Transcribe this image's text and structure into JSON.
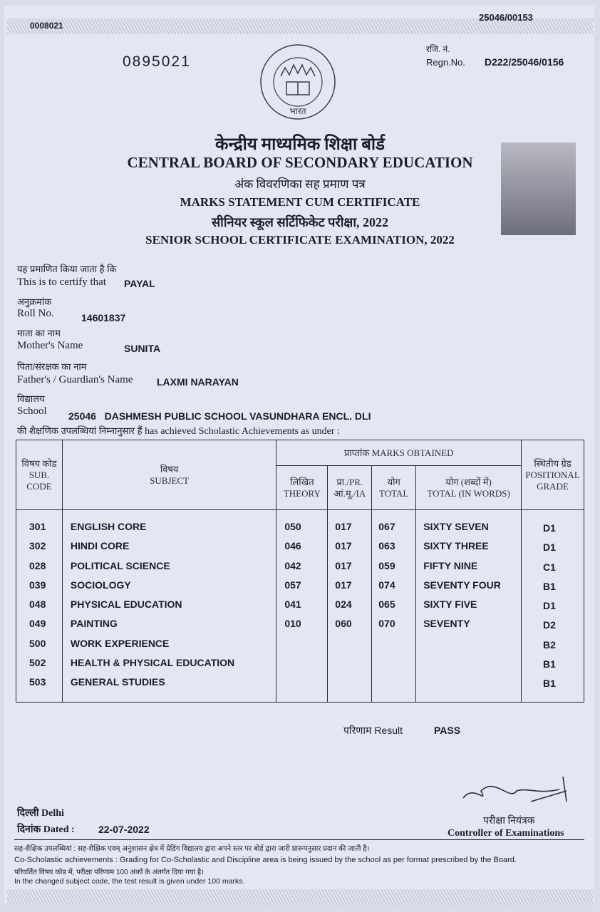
{
  "serials": {
    "top_left": "0008021",
    "top_right": "25046/00153",
    "number": "0895021"
  },
  "regn": {
    "label_hi": "रजि. नं.",
    "label_en": "Regn.No.",
    "value": "D222/25046/0156"
  },
  "emblem": {
    "icon": "cbse-emblem",
    "text": "भारत"
  },
  "header": {
    "board_hi": "केन्द्रीय माध्यमिक शिक्षा बोर्ड",
    "board_en": "CENTRAL BOARD OF SECONDARY EDUCATION",
    "doc_hi": "अंक विवरणिका सह प्रमाण पत्र",
    "doc_en": "MARKS STATEMENT CUM CERTIFICATE",
    "exam_hi": "सीनियर स्कूल सर्टिफिकेट परीक्षा, 2022",
    "exam_en": "SENIOR SCHOOL CERTIFICATE EXAMINATION, 2022"
  },
  "fields": {
    "certify_hi": "यह प्रमाणित किया जाता है कि",
    "certify_en": "This is to certify that",
    "name": "PAYAL",
    "roll_hi": "अनुक्रमांक",
    "roll_en": "Roll No.",
    "roll": "14601837",
    "mother_hi": "माता का नाम",
    "mother_en": "Mother's Name",
    "mother": "SUNITA",
    "father_hi": "पिता/संरक्षक का नाम",
    "father_en": "Father's / Guardian's Name",
    "father": "LAXMI NARAYAN",
    "school_hi": "विद्यालय",
    "school_en": "School",
    "school": "25046   DASHMESH PUBLIC SCHOOL VASUNDHARA ENCL. DLI",
    "achieve_hi": "की शैक्षणिक उपलब्धियां निम्नानुसार हैं",
    "achieve_en": "has achieved Scholastic Achievements as under :"
  },
  "table": {
    "headers": {
      "code_hi": "विषय कोड",
      "code_en": "SUB. CODE",
      "subject_hi": "विषय",
      "subject_en": "SUBJECT",
      "marks": "प्राप्तांक MARKS OBTAINED",
      "theory_hi": "लिखित",
      "theory_en": "THEORY",
      "pr_hi": "प्रा./PR.",
      "pr_en": "आं.मू./IA",
      "total_hi": "योग",
      "total_en": "TOTAL",
      "words_hi": "योग (शब्दों में)",
      "words_en": "TOTAL (IN WORDS)",
      "grade_hi": "स्थितीय ग्रेड",
      "grade_en": "POSITIONAL GRADE"
    },
    "rows": [
      {
        "code": "301",
        "subject": "ENGLISH CORE",
        "theory": "050",
        "pr": "017",
        "total": "067",
        "words": "SIXTY SEVEN",
        "grade": "D1"
      },
      {
        "code": "302",
        "subject": "HINDI CORE",
        "theory": "046",
        "pr": "017",
        "total": "063",
        "words": "SIXTY THREE",
        "grade": "D1"
      },
      {
        "code": "028",
        "subject": "POLITICAL SCIENCE",
        "theory": "042",
        "pr": "017",
        "total": "059",
        "words": "FIFTY NINE",
        "grade": "C1"
      },
      {
        "code": "039",
        "subject": "SOCIOLOGY",
        "theory": "057",
        "pr": "017",
        "total": "074",
        "words": "SEVENTY FOUR",
        "grade": "B1"
      },
      {
        "code": "048",
        "subject": "PHYSICAL EDUCATION",
        "theory": "041",
        "pr": "024",
        "total": "065",
        "words": "SIXTY FIVE",
        "grade": "D1"
      },
      {
        "code": "049",
        "subject": "PAINTING",
        "theory": "010",
        "pr": "060",
        "total": "070",
        "words": "SEVENTY",
        "grade": "D2"
      },
      {
        "code": "500",
        "subject": "WORK EXPERIENCE",
        "theory": "",
        "pr": "",
        "total": "",
        "words": "",
        "grade": "B2"
      },
      {
        "code": "502",
        "subject": "HEALTH & PHYSICAL EDUCATION",
        "theory": "",
        "pr": "",
        "total": "",
        "words": "",
        "grade": "B1"
      },
      {
        "code": "503",
        "subject": "GENERAL STUDIES",
        "theory": "",
        "pr": "",
        "total": "",
        "words": "",
        "grade": "B1"
      }
    ]
  },
  "result": {
    "label": "परिणाम Result",
    "value": "PASS"
  },
  "footer": {
    "place": "दिल्ली Delhi",
    "dated_label": "दिनांक Dated :",
    "date": "22-07-2022",
    "controller_hi": "परीक्षा नियंत्रक",
    "controller_en": "Controller of Examinations",
    "note1_hi": "सह-शैक्षिक उपलब्धियां : सह-शैक्षिक एवम् अनुशासन क्षेत्र में ग्रेडिंग विद्यालय द्वारा अपने स्तर पर बोर्ड द्वारा जारी प्रारूपनुसार प्रदान की जाती है।",
    "note1_en": "Co-Scholastic achievements : Grading for Co-Scholastic and Discipline area is being issued by the school as per format prescribed by the Board.",
    "note2_hi": "परिवर्तित विषय कोड में, परीक्षा परिणाम 100 अंकों के अंतर्गत दिया गया है।",
    "note2_en": "In the changed subject code, the test result is given under 100 marks."
  }
}
